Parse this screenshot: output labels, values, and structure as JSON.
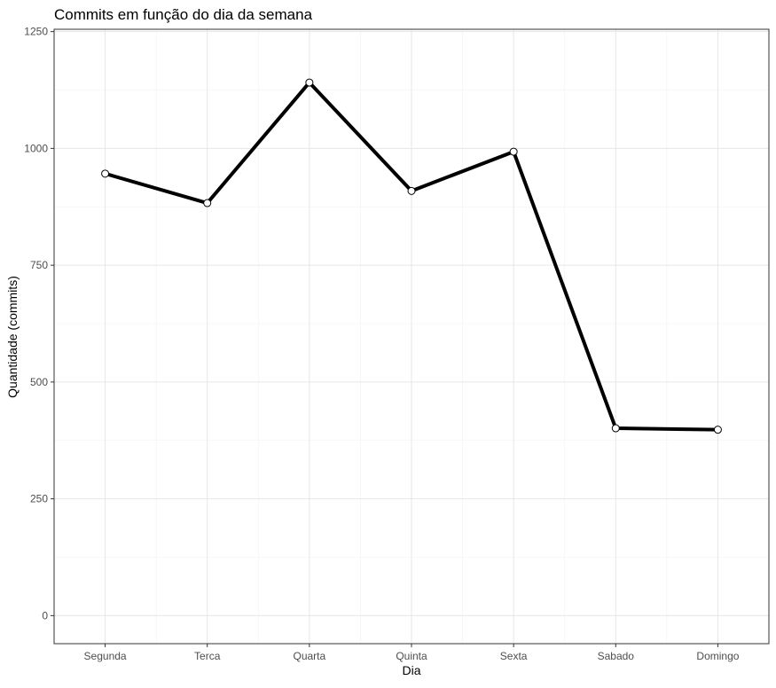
{
  "chart_data": {
    "type": "line",
    "title": "Commits em função do dia da semana",
    "xlabel": "Dia",
    "ylabel": "Quantidade (commits)",
    "categories": [
      "Segunda",
      "Terca",
      "Quarta",
      "Quinta",
      "Sexta",
      "Sabado",
      "Domingo"
    ],
    "series": [
      {
        "values": [
          946,
          883,
          1141,
          909,
          993,
          401,
          398
        ]
      }
    ],
    "ylim": [
      -60,
      1255
    ],
    "yticks": [
      0,
      250,
      500,
      750,
      1000,
      1250
    ],
    "grid": true,
    "legend": "none",
    "colors": {
      "line": "#000000",
      "point_fill": "#ffffff",
      "grid_major": "#e6e6e6",
      "grid_minor": "#f2f2f2",
      "panel_border": "#333333",
      "tick_text": "#4d4d4d",
      "title_text": "#000000"
    }
  }
}
